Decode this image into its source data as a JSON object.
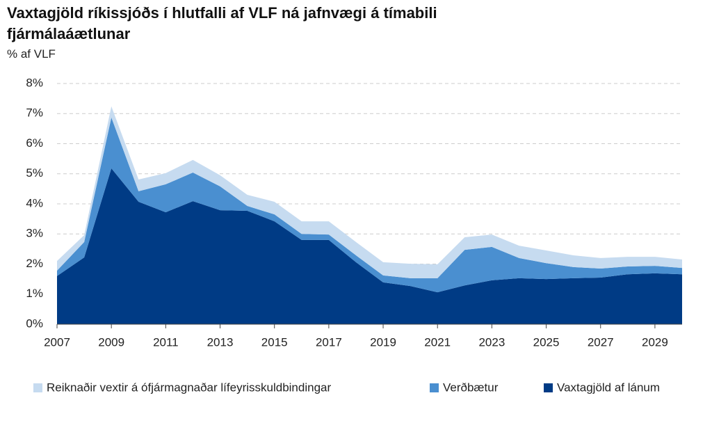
{
  "chart_data": {
    "type": "stacked_area",
    "title": "Vaxtagjöld ríkissjóðs í hlutfalli af VLF ná jafnvægi á tímabili fjármálaáætlunar",
    "subtitle": "% af VLF",
    "x": [
      2007,
      2008,
      2009,
      2010,
      2011,
      2012,
      2013,
      2014,
      2015,
      2016,
      2017,
      2018,
      2019,
      2020,
      2021,
      2022,
      2023,
      2024,
      2025,
      2026,
      2027,
      2028,
      2029,
      2030
    ],
    "series": [
      {
        "name": "Reiknaðir vextir á ófjármagnaðar lífeyrisskuldbindingar",
        "color": "#c6dbf0",
        "values": [
          0.32,
          0.23,
          0.37,
          0.39,
          0.37,
          0.42,
          0.37,
          0.37,
          0.42,
          0.42,
          0.44,
          0.44,
          0.44,
          0.48,
          0.46,
          0.42,
          0.41,
          0.41,
          0.42,
          0.39,
          0.35,
          0.32,
          0.3,
          0.28
        ]
      },
      {
        "name": "Verðbætur",
        "color": "#4a8fd0",
        "values": [
          0.18,
          0.51,
          1.69,
          0.35,
          0.93,
          0.95,
          0.79,
          0.16,
          0.23,
          0.2,
          0.18,
          0.23,
          0.23,
          0.26,
          0.47,
          1.18,
          1.11,
          0.67,
          0.53,
          0.37,
          0.3,
          0.26,
          0.25,
          0.21
        ]
      },
      {
        "name": "Vaxtagjöld af lánum",
        "color": "#003b85",
        "values": [
          1.6,
          2.22,
          5.18,
          4.07,
          3.72,
          4.09,
          3.79,
          3.77,
          3.42,
          2.8,
          2.8,
          2.06,
          1.39,
          1.27,
          1.06,
          1.29,
          1.46,
          1.53,
          1.5,
          1.53,
          1.55,
          1.66,
          1.69,
          1.66
        ]
      }
    ],
    "xlim": [
      2007,
      2030
    ],
    "xticks": [
      2007,
      2009,
      2011,
      2013,
      2015,
      2017,
      2019,
      2021,
      2023,
      2025,
      2027,
      2029
    ],
    "ylim": [
      0,
      8
    ],
    "yticks": [
      {
        "value": 0,
        "label": "0%"
      },
      {
        "value": 1,
        "label": "1%"
      },
      {
        "value": 2,
        "label": "2%"
      },
      {
        "value": 3,
        "label": "3%"
      },
      {
        "value": 4,
        "label": "4%"
      },
      {
        "value": 5,
        "label": "5%"
      },
      {
        "value": 6,
        "label": "6%"
      },
      {
        "value": 7,
        "label": "7%"
      },
      {
        "value": 8,
        "label": "8%"
      }
    ],
    "grid": true,
    "legend": "bottom"
  }
}
